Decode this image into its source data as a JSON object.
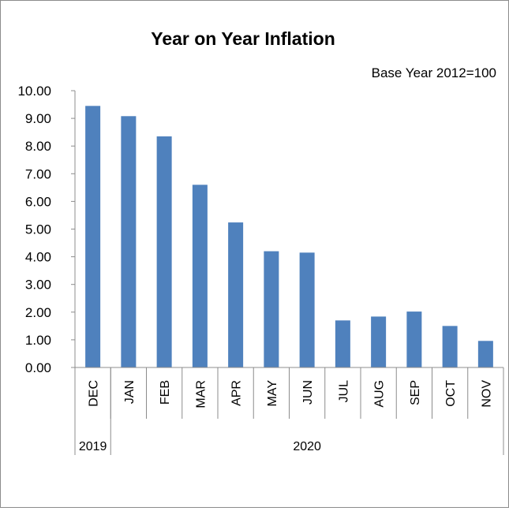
{
  "chart_data": {
    "type": "bar",
    "title": "Year on Year Inflation",
    "subtitle": "Base Year 2012=100",
    "categories": [
      "DEC",
      "JAN",
      "FEB",
      "MAR",
      "APR",
      "MAY",
      "JUN",
      "JUL",
      "AUG",
      "SEP",
      "OCT",
      "NOV"
    ],
    "year_groups": [
      {
        "label": "2019",
        "count": 1
      },
      {
        "label": "2020",
        "count": 11
      }
    ],
    "values": [
      9.45,
      9.08,
      8.35,
      6.6,
      5.24,
      4.2,
      4.15,
      1.7,
      1.84,
      2.02,
      1.5,
      0.96
    ],
    "yticks": [
      "0.00",
      "1.00",
      "2.00",
      "3.00",
      "4.00",
      "5.00",
      "6.00",
      "7.00",
      "8.00",
      "9.00",
      "10.00"
    ],
    "ylim": [
      0,
      10
    ],
    "bar_color": "#4f81bd",
    "grid": false,
    "legend": "none"
  }
}
